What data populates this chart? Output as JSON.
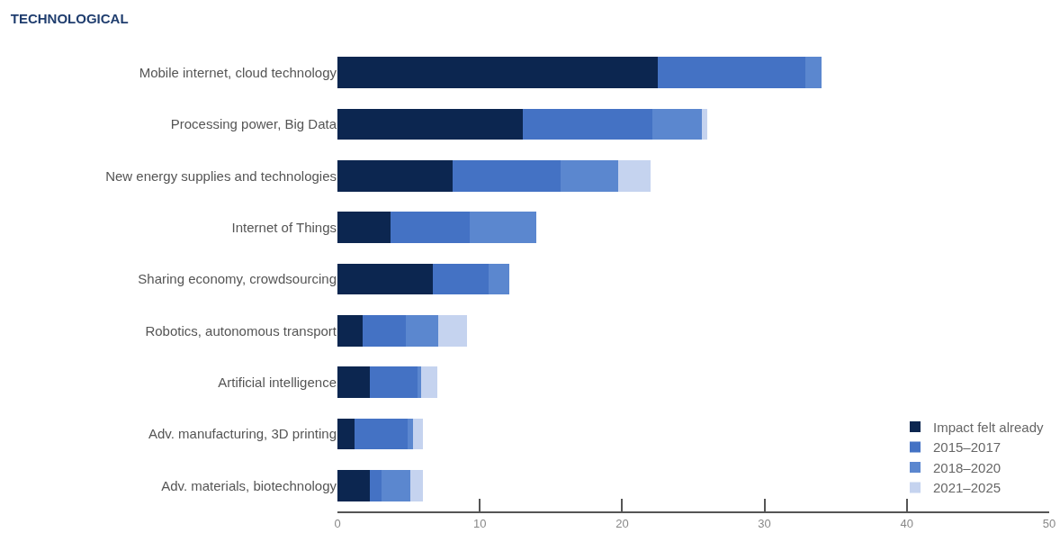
{
  "chart_data": {
    "type": "bar",
    "orientation": "horizontal",
    "stacked": true,
    "title": "TECHNOLOGICAL",
    "categories": [
      "Mobile internet, cloud technology",
      "Processing power, Big Data",
      "New energy supplies and technologies",
      "Internet of Things",
      "Sharing economy, crowdsourcing",
      "Robotics, autonomous transport",
      "Artificial intelligence",
      "Adv. manufacturing, 3D printing",
      "Adv. materials, biotechnology"
    ],
    "series": [
      {
        "name": "Impact felt already",
        "color": "#0c2650",
        "values": [
          22.5,
          13.0,
          8.1,
          3.7,
          6.7,
          1.8,
          2.3,
          1.2,
          2.3
        ]
      },
      {
        "name": "2015–2017",
        "color": "#4472c4",
        "values": [
          10.4,
          9.1,
          7.6,
          5.6,
          3.9,
          3.0,
          3.3,
          3.7,
          0.8
        ]
      },
      {
        "name": "2018–2020",
        "color": "#5b87cf",
        "values": [
          1.1,
          3.5,
          4.0,
          4.7,
          1.5,
          2.3,
          0.3,
          0.4,
          2.0
        ]
      },
      {
        "name": "2021–2025",
        "color": "#c5d3ef",
        "values": [
          0,
          0.4,
          2.3,
          0,
          0,
          2.0,
          1.1,
          0.7,
          0.9
        ]
      }
    ],
    "xlim": [
      0,
      50
    ],
    "xticks": [
      0,
      10,
      20,
      30,
      40,
      50
    ],
    "grid": false,
    "legend": "bottom right"
  }
}
